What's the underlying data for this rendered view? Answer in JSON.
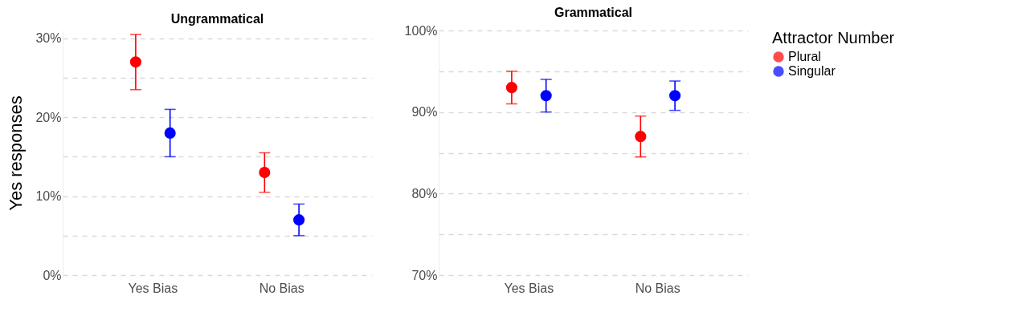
{
  "chart_data": [
    {
      "type": "scatter",
      "title": "Ungrammatical",
      "ylabel": "Yes responses",
      "legend": "right",
      "categories": [
        "Yes Bias",
        "No Bias"
      ],
      "ylim": [
        0,
        31
      ],
      "yticks": [
        {
          "value": 0,
          "label": "0%"
        },
        {
          "value": 5,
          "label": null
        },
        {
          "value": 10,
          "label": "10%"
        },
        {
          "value": 15,
          "label": null
        },
        {
          "value": 20,
          "label": "20%"
        },
        {
          "value": 25,
          "label": null
        },
        {
          "value": 30,
          "label": "30%"
        }
      ],
      "grid": "y",
      "marker": "circle",
      "series": [
        {
          "name": "Plural",
          "color": "#ff0000",
          "values": [
            27,
            13
          ],
          "errors": [
            [
              23.5,
              30.5
            ],
            [
              10.5,
              15.5
            ]
          ]
        },
        {
          "name": "Singular",
          "color": "#0000ff",
          "values": [
            18,
            7
          ],
          "errors": [
            [
              15,
              21
            ],
            [
              5,
              9
            ]
          ]
        }
      ]
    },
    {
      "type": "scatter",
      "title": "Grammatical",
      "legend_title": "Attractor Number",
      "legend": "right",
      "categories": [
        "Yes Bias",
        "No Bias"
      ],
      "ylim": [
        70,
        100
      ],
      "yticks": [
        {
          "value": 70,
          "label": "70%"
        },
        {
          "value": 75,
          "label": null
        },
        {
          "value": 80,
          "label": "80%"
        },
        {
          "value": 85,
          "label": null
        },
        {
          "value": 90,
          "label": "90%"
        },
        {
          "value": 95,
          "label": null
        },
        {
          "value": 100,
          "label": "100%"
        }
      ],
      "grid": "y",
      "marker": "circle",
      "series": [
        {
          "name": "Plural",
          "color": "#ff0000",
          "values": [
            93,
            87
          ],
          "errors": [
            [
              91,
              95
            ],
            [
              84.5,
              89.5
            ]
          ]
        },
        {
          "name": "Singular",
          "color": "#0000ff",
          "values": [
            92,
            92
          ],
          "errors": [
            [
              90,
              94
            ],
            [
              90.2,
              93.8
            ]
          ]
        }
      ]
    }
  ]
}
